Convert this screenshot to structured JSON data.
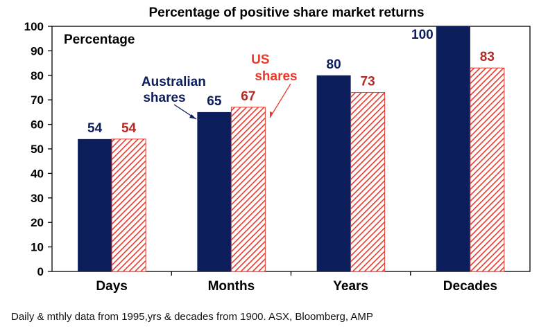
{
  "chart_data": {
    "type": "bar",
    "title": "Percentage of positive share market returns",
    "ylabel": "Percentage",
    "ylim": [
      0,
      100
    ],
    "yticks": [
      0,
      10,
      20,
      30,
      40,
      50,
      60,
      70,
      80,
      90,
      100
    ],
    "categories": [
      "Days",
      "Months",
      "Years",
      "Decades"
    ],
    "series": [
      {
        "name": "Australian shares",
        "label_lines": [
          "Australian",
          "shares"
        ],
        "color": "#0c1d5c",
        "pattern": "solid",
        "values": [
          54,
          65,
          80,
          100
        ],
        "labels": [
          "54",
          "65",
          "80",
          "100"
        ]
      },
      {
        "name": "US shares",
        "label_lines": [
          "US",
          "shares"
        ],
        "color": "#e8392b",
        "pattern": "hatched",
        "values": [
          54,
          67,
          73,
          83
        ],
        "labels": [
          "54",
          "67",
          "73",
          "83"
        ]
      }
    ]
  },
  "source": "Daily & mthly data from 1995,yrs & decades from 1900. ASX, Bloomberg, AMP"
}
